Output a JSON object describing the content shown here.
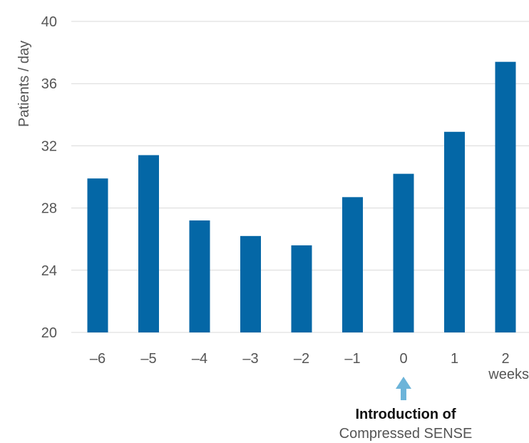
{
  "chart_data": {
    "type": "bar",
    "title": "",
    "xlabel": "weeks",
    "ylabel": "Patients / day",
    "categories": [
      "–6",
      "–5",
      "–4",
      "–3",
      "–2",
      "–1",
      "0",
      "1",
      "2"
    ],
    "values": [
      29.9,
      31.4,
      27.2,
      26.2,
      25.6,
      28.7,
      30.2,
      32.9,
      37.4
    ],
    "ylim": [
      20,
      40
    ],
    "yticks": [
      20,
      24,
      28,
      32,
      36,
      40
    ],
    "grid": true,
    "bar_color": "#0467a6",
    "grid_color": "#d9d9d9",
    "annotation": {
      "category": "0",
      "line1": "Introduction of",
      "line2": "Compressed SENSE",
      "arrow_color": "#6cb4d9"
    }
  }
}
